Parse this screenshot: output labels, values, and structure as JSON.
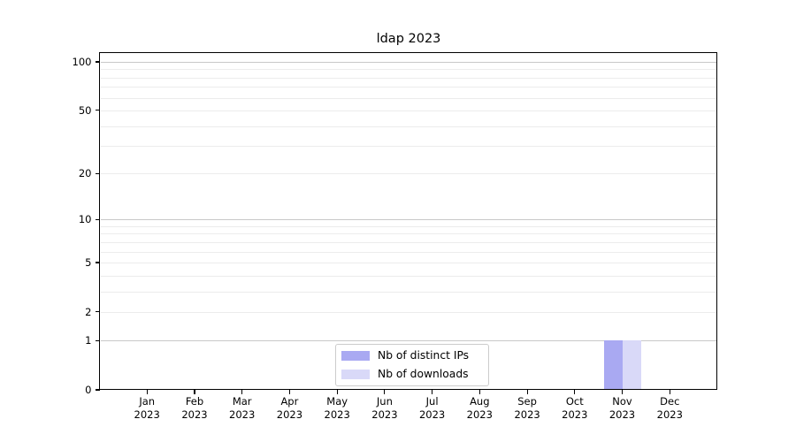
{
  "chart_data": {
    "type": "bar",
    "title": "ldap 2023",
    "categories": [
      "Jan 2023",
      "Feb 2023",
      "Mar 2023",
      "Apr 2023",
      "May 2023",
      "Jun 2023",
      "Jul 2023",
      "Aug 2023",
      "Sep 2023",
      "Oct 2023",
      "Nov 2023",
      "Dec 2023"
    ],
    "series": [
      {
        "name": "Nb of distinct IPs",
        "color": "#a9a9f2",
        "values": [
          0,
          0,
          0,
          0,
          0,
          0,
          0,
          0,
          0,
          0,
          1,
          0
        ]
      },
      {
        "name": "Nb of downloads",
        "color": "#d9d9f8",
        "values": [
          0,
          0,
          0,
          0,
          0,
          0,
          0,
          0,
          0,
          0,
          1,
          0
        ]
      }
    ],
    "xlabel": "",
    "ylabel": "",
    "ylim": [
      0,
      100
    ],
    "y_scale": "log10(1+x)",
    "y_tick_labels": [
      0,
      1,
      2,
      5,
      10,
      20,
      50,
      100
    ],
    "y_major_gridlines": [
      1,
      10,
      100
    ],
    "y_minor_gridlines": [
      2,
      3,
      4,
      5,
      6,
      7,
      8,
      9,
      20,
      30,
      40,
      50,
      60,
      70,
      80,
      90
    ],
    "grid": "horizontal",
    "legend_position": "lower-center-inside",
    "colors": {
      "grid_major": "#c8c8c8",
      "grid_minor": "#ececec",
      "axis": "#000000",
      "legend_border": "#cccccc"
    }
  }
}
